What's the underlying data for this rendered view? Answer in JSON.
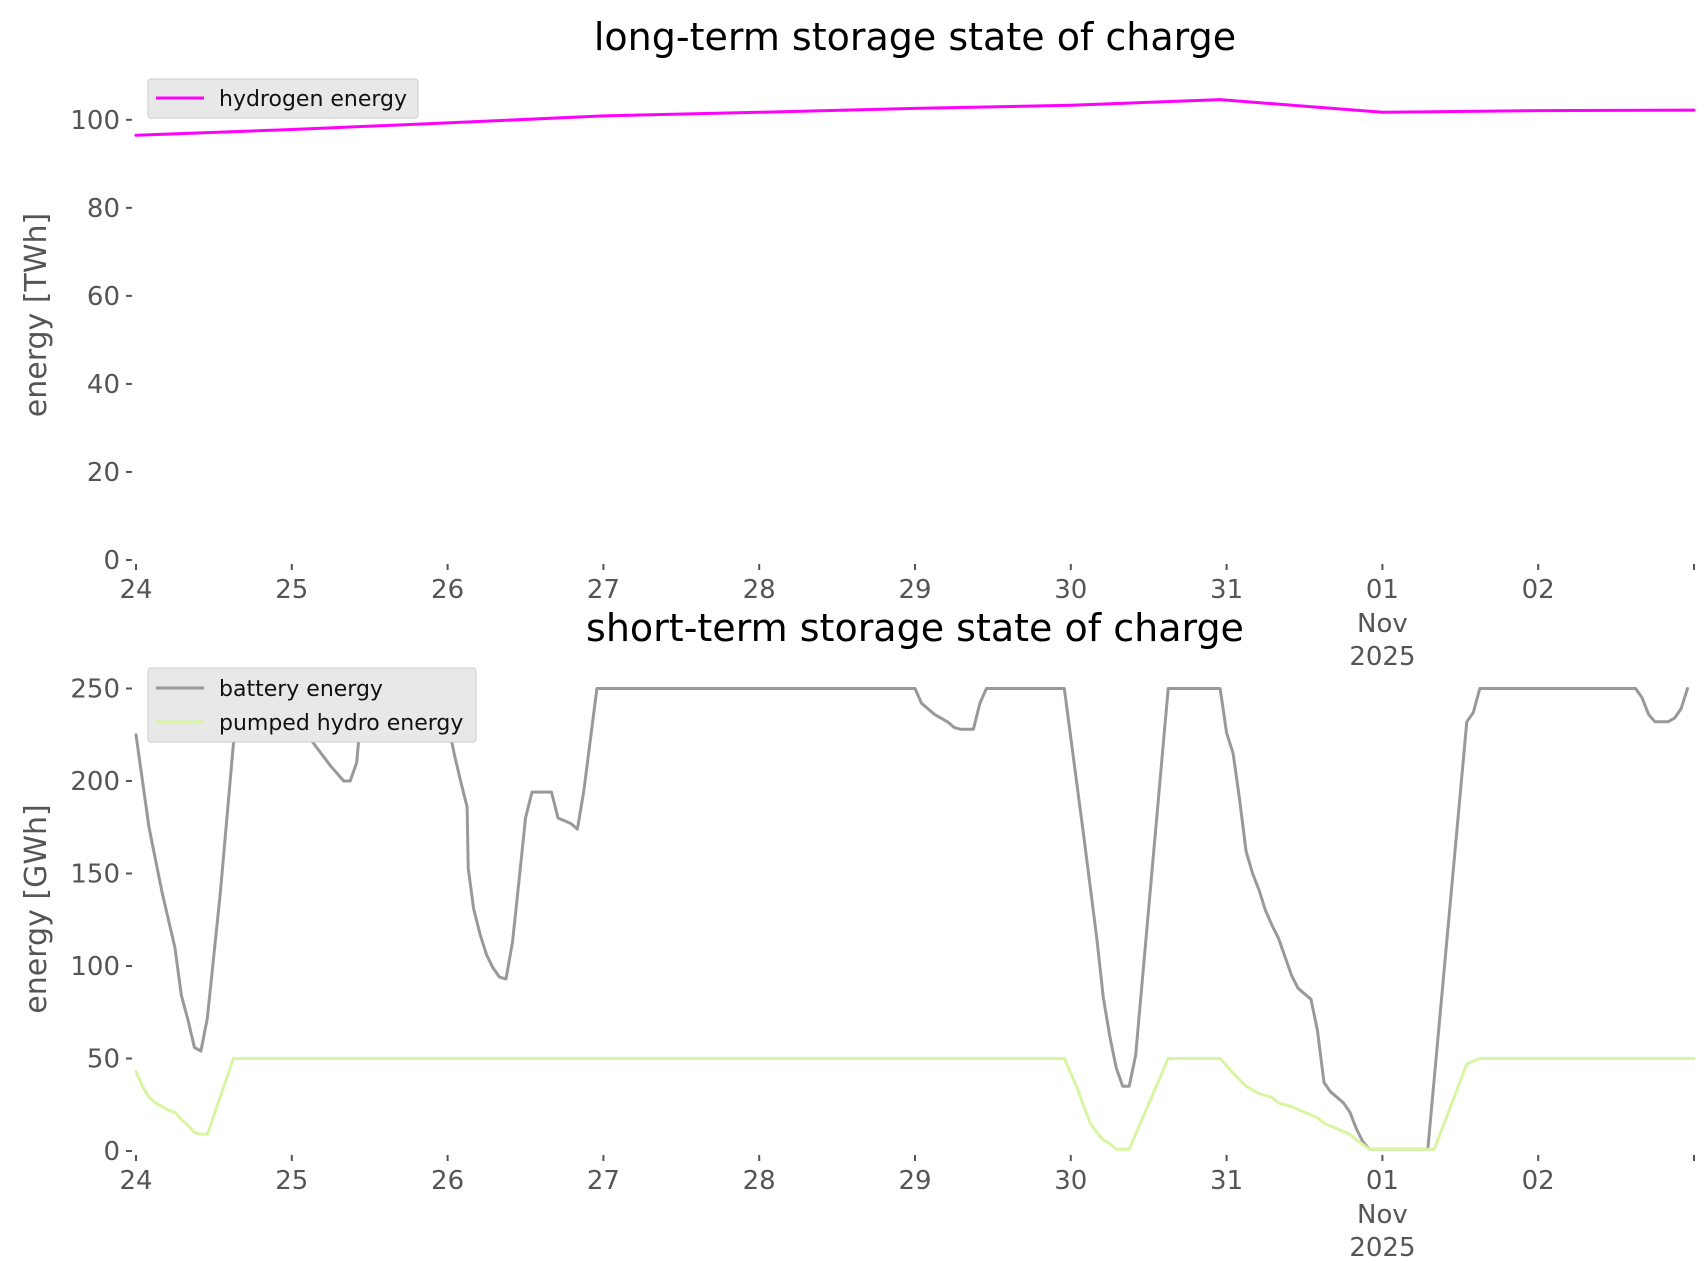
{
  "chart_data": [
    {
      "type": "line",
      "title": "long-term storage state of charge",
      "xlabel": "",
      "ylabel": "energy [TWh]",
      "ylim": [
        0,
        107
      ],
      "xlim": [
        "2025-10-24T00:00",
        "2025-11-03T00:00"
      ],
      "yticks": [
        "0",
        "20",
        "40",
        "60",
        "80",
        "100"
      ],
      "xticks": [
        {
          "date": "2025-10-24T00:00",
          "label": "24"
        },
        {
          "date": "2025-10-25T00:00",
          "label": "25"
        },
        {
          "date": "2025-10-26T00:00",
          "label": "26"
        },
        {
          "date": "2025-10-27T00:00",
          "label": "27"
        },
        {
          "date": "2025-10-28T00:00",
          "label": "28"
        },
        {
          "date": "2025-10-29T00:00",
          "label": "29"
        },
        {
          "date": "2025-10-30T00:00",
          "label": "30"
        },
        {
          "date": "2025-10-31T00:00",
          "label": "31"
        },
        {
          "date": "2025-11-01T00:00",
          "label": "01",
          "sub1": "Nov",
          "sub2": "2025"
        },
        {
          "date": "2025-11-02T00:00",
          "label": "02"
        },
        {
          "date": "2025-11-03T00:00",
          "label": ""
        }
      ],
      "grid": false,
      "legend_position": "top-left",
      "series": [
        {
          "name": "hydrogen energy",
          "color": "#ff00ff",
          "points": [
            [
              "2025-10-24T00:00",
              96.5
            ],
            [
              "2025-10-25T00:00",
              97.8
            ],
            [
              "2025-10-26T00:00",
              99.3
            ],
            [
              "2025-10-27T00:00",
              100.9
            ],
            [
              "2025-10-28T00:00",
              101.7
            ],
            [
              "2025-10-29T00:00",
              102.6
            ],
            [
              "2025-10-30T00:00",
              103.3
            ],
            [
              "2025-10-30T23:00",
              104.6
            ],
            [
              "2025-11-01T00:00",
              101.7
            ],
            [
              "2025-11-02T00:00",
              102.1
            ],
            [
              "2025-11-03T00:00",
              102.2
            ]
          ]
        }
      ]
    },
    {
      "type": "line",
      "title": "short-term storage state of charge",
      "xlabel": "",
      "ylabel": "energy [GWh]",
      "ylim": [
        0,
        260
      ],
      "xlim": [
        "2025-10-24T00:00",
        "2025-11-03T00:00"
      ],
      "yticks": [
        "0",
        "50",
        "100",
        "150",
        "200",
        "250"
      ],
      "xticks": [
        {
          "date": "2025-10-24T00:00",
          "label": "24"
        },
        {
          "date": "2025-10-25T00:00",
          "label": "25"
        },
        {
          "date": "2025-10-26T00:00",
          "label": "26"
        },
        {
          "date": "2025-10-27T00:00",
          "label": "27"
        },
        {
          "date": "2025-10-28T00:00",
          "label": "28"
        },
        {
          "date": "2025-10-29T00:00",
          "label": "29"
        },
        {
          "date": "2025-10-30T00:00",
          "label": "30"
        },
        {
          "date": "2025-10-31T00:00",
          "label": "31"
        },
        {
          "date": "2025-11-01T00:00",
          "label": "01",
          "sub1": "Nov",
          "sub2": "2025"
        },
        {
          "date": "2025-11-02T00:00",
          "label": "02"
        },
        {
          "date": "2025-11-03T00:00",
          "label": ""
        }
      ],
      "grid": false,
      "legend_position": "top-left",
      "series": [
        {
          "name": "battery energy",
          "color": "#999999",
          "points": [
            [
              "2025-10-24T00:00",
              225
            ],
            [
              "2025-10-24T02:00",
              175
            ],
            [
              "2025-10-24T04:00",
              140
            ],
            [
              "2025-10-24T06:00",
              110
            ],
            [
              "2025-10-24T07:00",
              84
            ],
            [
              "2025-10-24T08:00",
              71
            ],
            [
              "2025-10-24T09:00",
              56
            ],
            [
              "2025-10-24T10:00",
              54
            ],
            [
              "2025-10-24T11:00",
              72
            ],
            [
              "2025-10-24T13:00",
              140
            ],
            [
              "2025-10-24T15:00",
              220
            ],
            [
              "2025-10-24T16:00",
              250
            ],
            [
              "2025-10-25T00:00",
              250
            ],
            [
              "2025-10-25T03:00",
              222
            ],
            [
              "2025-10-25T06:00",
              208
            ],
            [
              "2025-10-25T08:00",
              200
            ],
            [
              "2025-10-25T09:00",
              200
            ],
            [
              "2025-10-25T10:00",
              210
            ],
            [
              "2025-10-25T11:00",
              250
            ],
            [
              "2025-10-25T23:00",
              250
            ],
            [
              "2025-10-26T01:00",
              215
            ],
            [
              "2025-10-26T02:00",
              200
            ],
            [
              "2025-10-26T03:00",
              186
            ],
            [
              "2025-10-26T03:10",
              153
            ],
            [
              "2025-10-26T04:00",
              131
            ],
            [
              "2025-10-26T05:00",
              117
            ],
            [
              "2025-10-26T06:00",
              106
            ],
            [
              "2025-10-26T07:00",
              99
            ],
            [
              "2025-10-26T08:00",
              94
            ],
            [
              "2025-10-26T09:00",
              93
            ],
            [
              "2025-10-26T10:00",
              113
            ],
            [
              "2025-10-26T11:00",
              146
            ],
            [
              "2025-10-26T12:00",
              180
            ],
            [
              "2025-10-26T13:00",
              194
            ],
            [
              "2025-10-26T16:00",
              194
            ],
            [
              "2025-10-26T17:00",
              180
            ],
            [
              "2025-10-26T19:00",
              177
            ],
            [
              "2025-10-26T20:00",
              174
            ],
            [
              "2025-10-26T21:00",
              195
            ],
            [
              "2025-10-26T23:00",
              250
            ],
            [
              "2025-10-29T00:00",
              250
            ],
            [
              "2025-10-29T01:00",
              242
            ],
            [
              "2025-10-29T03:00",
              236
            ],
            [
              "2025-10-29T05:00",
              232
            ],
            [
              "2025-10-29T06:00",
              229
            ],
            [
              "2025-10-29T07:00",
              228
            ],
            [
              "2025-10-29T09:00",
              228
            ],
            [
              "2025-10-29T10:00",
              242
            ],
            [
              "2025-10-29T11:00",
              250
            ],
            [
              "2025-10-29T23:00",
              250
            ],
            [
              "2025-10-30T02:00",
              170
            ],
            [
              "2025-10-30T04:00",
              115
            ],
            [
              "2025-10-30T05:00",
              83
            ],
            [
              "2025-10-30T06:00",
              62
            ],
            [
              "2025-10-30T07:00",
              45
            ],
            [
              "2025-10-30T08:00",
              35
            ],
            [
              "2025-10-30T09:00",
              35
            ],
            [
              "2025-10-30T10:00",
              52
            ],
            [
              "2025-10-30T15:00",
              250
            ],
            [
              "2025-10-30T23:00",
              250
            ],
            [
              "2025-10-31T00:00",
              226
            ],
            [
              "2025-10-31T01:00",
              215
            ],
            [
              "2025-10-31T02:00",
              190
            ],
            [
              "2025-10-31T03:00",
              162
            ],
            [
              "2025-10-31T04:00",
              150
            ],
            [
              "2025-10-31T05:00",
              141
            ],
            [
              "2025-10-31T06:00",
              130
            ],
            [
              "2025-10-31T07:00",
              122
            ],
            [
              "2025-10-31T08:00",
              115
            ],
            [
              "2025-10-31T09:00",
              105
            ],
            [
              "2025-10-31T10:00",
              95
            ],
            [
              "2025-10-31T11:00",
              88
            ],
            [
              "2025-10-31T13:00",
              82
            ],
            [
              "2025-10-31T14:00",
              65
            ],
            [
              "2025-10-31T15:00",
              37
            ],
            [
              "2025-10-31T16:00",
              32
            ],
            [
              "2025-10-31T17:00",
              29
            ],
            [
              "2025-10-31T18:00",
              26
            ],
            [
              "2025-10-31T19:00",
              21
            ],
            [
              "2025-10-31T20:00",
              12
            ],
            [
              "2025-10-31T21:00",
              5
            ],
            [
              "2025-10-31T22:00",
              1
            ],
            [
              "2025-11-01T07:00",
              1
            ],
            [
              "2025-11-01T13:00",
              232
            ],
            [
              "2025-11-01T14:00",
              237
            ],
            [
              "2025-11-01T15:00",
              250
            ],
            [
              "2025-11-02T15:00",
              250
            ],
            [
              "2025-11-02T16:00",
              245
            ],
            [
              "2025-11-02T17:00",
              236
            ],
            [
              "2025-11-02T18:00",
              232
            ],
            [
              "2025-11-02T20:00",
              232
            ],
            [
              "2025-11-02T21:00",
              234
            ],
            [
              "2025-11-02T22:00",
              239
            ],
            [
              "2025-11-02T23:00",
              250
            ]
          ]
        },
        {
          "name": "pumped hydro energy",
          "color": "#d8f5a2",
          "points": [
            [
              "2025-10-24T00:00",
              43
            ],
            [
              "2025-10-24T01:00",
              35
            ],
            [
              "2025-10-24T02:00",
              29
            ],
            [
              "2025-10-24T03:00",
              26
            ],
            [
              "2025-10-24T04:00",
              24
            ],
            [
              "2025-10-24T05:00",
              22
            ],
            [
              "2025-10-24T06:00",
              21
            ],
            [
              "2025-10-24T07:00",
              17
            ],
            [
              "2025-10-24T08:00",
              14
            ],
            [
              "2025-10-24T09:00",
              10
            ],
            [
              "2025-10-24T10:00",
              9
            ],
            [
              "2025-10-24T11:00",
              9
            ],
            [
              "2025-10-24T15:00",
              50
            ],
            [
              "2025-10-29T23:00",
              50
            ],
            [
              "2025-10-30T01:00",
              34
            ],
            [
              "2025-10-30T02:00",
              24
            ],
            [
              "2025-10-30T03:00",
              15
            ],
            [
              "2025-10-30T04:00",
              10
            ],
            [
              "2025-10-30T05:00",
              6
            ],
            [
              "2025-10-30T06:00",
              4
            ],
            [
              "2025-10-30T07:00",
              1
            ],
            [
              "2025-10-30T09:00",
              1
            ],
            [
              "2025-10-30T15:00",
              50
            ],
            [
              "2025-10-30T23:00",
              50
            ],
            [
              "2025-10-31T01:00",
              42
            ],
            [
              "2025-10-31T03:00",
              35
            ],
            [
              "2025-10-31T05:00",
              31
            ],
            [
              "2025-10-31T07:00",
              29
            ],
            [
              "2025-10-31T08:00",
              26
            ],
            [
              "2025-10-31T10:00",
              24
            ],
            [
              "2025-10-31T12:00",
              21
            ],
            [
              "2025-10-31T14:00",
              18
            ],
            [
              "2025-10-31T15:00",
              15
            ],
            [
              "2025-10-31T17:00",
              12
            ],
            [
              "2025-10-31T19:00",
              9
            ],
            [
              "2025-10-31T20:00",
              6
            ],
            [
              "2025-10-31T22:00",
              1
            ],
            [
              "2025-11-01T08:00",
              1
            ],
            [
              "2025-11-01T13:00",
              47
            ],
            [
              "2025-11-01T15:00",
              50
            ],
            [
              "2025-11-03T00:00",
              50
            ]
          ]
        }
      ]
    }
  ]
}
